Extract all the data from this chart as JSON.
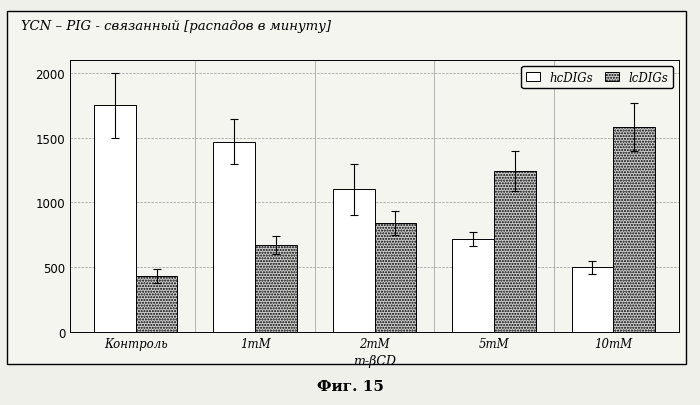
{
  "title": "YCN – PIG - связанный [распадов в минуту]",
  "xlabel": "m-βCD",
  "categories": [
    "Контроль",
    "1mM",
    "2mM",
    "5mM",
    "10mM"
  ],
  "hcDIGs_values": [
    1750,
    1470,
    1100,
    720,
    500
  ],
  "hcDIGs_errors": [
    250,
    175,
    200,
    55,
    50
  ],
  "lcDIGs_values": [
    430,
    670,
    840,
    1240,
    1580
  ],
  "lcDIGs_errors": [
    55,
    70,
    90,
    155,
    185
  ],
  "ylim": [
    0,
    2100
  ],
  "yticks": [
    0,
    500,
    1000,
    1500,
    2000
  ],
  "bar_width": 0.35,
  "hcDIGs_color": "#ffffff",
  "lcDIGs_color": "#cccccc",
  "edge_color": "#000000",
  "legend_labels": [
    "hcDIGs",
    "lcDIGs"
  ],
  "fig_caption": "Фиг. 15",
  "background_color": "#f5f5f0",
  "grid_color": "#999999",
  "title_fontsize": 9.5,
  "axis_fontsize": 9,
  "tick_fontsize": 8.5,
  "legend_fontsize": 8.5
}
